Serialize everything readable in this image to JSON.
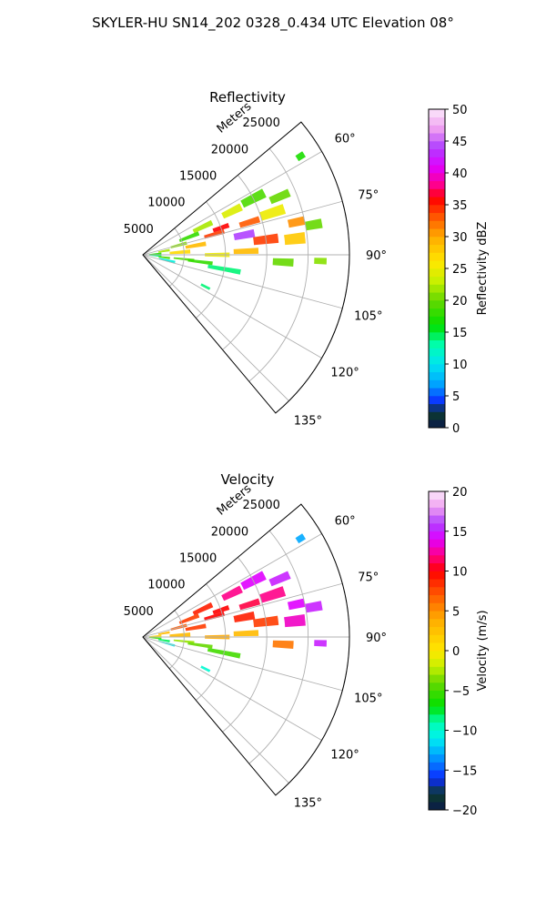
{
  "figure": {
    "title": "SKYLER-HU  SN14_202  0328_0.434 UTC Elevation 08°"
  },
  "chart_data": [
    {
      "type": "heatmap",
      "projection": "polar-sector",
      "title": "Reflectivity",
      "radial_label": "Meters",
      "radial_ticks": [
        5000,
        10000,
        15000,
        20000,
        25000
      ],
      "radial_tick_labels": [
        "5000",
        "10000",
        "15000",
        "20000",
        "25000"
      ],
      "rlim": [
        0,
        25000
      ],
      "theta_range_deg": [
        50,
        140
      ],
      "theta_ticks_deg": [
        60,
        75,
        90,
        105,
        120,
        135
      ],
      "theta_tick_labels": [
        "60°",
        "75°",
        "90°",
        "105°",
        "120°",
        "135°"
      ],
      "grid": true,
      "colorbar": {
        "label": "Reflectivity dBZ",
        "range": [
          0,
          50
        ],
        "ticks": [
          0,
          5,
          10,
          15,
          20,
          25,
          30,
          35,
          40,
          45,
          50
        ],
        "tick_labels": [
          "0",
          "5",
          "10",
          "15",
          "20",
          "25",
          "30",
          "35",
          "40",
          "45",
          "50"
        ],
        "stops": [
          {
            "v": 0,
            "c": "#0a1a4a"
          },
          {
            "v": 2.5,
            "c": "#0d3b2e"
          },
          {
            "v": 4,
            "c": "#0b2bff"
          },
          {
            "v": 7,
            "c": "#00a8ff"
          },
          {
            "v": 10,
            "c": "#00e5f0"
          },
          {
            "v": 13,
            "c": "#00ffb0"
          },
          {
            "v": 16,
            "c": "#00e000"
          },
          {
            "v": 20,
            "c": "#66d800"
          },
          {
            "v": 23,
            "c": "#c8f000"
          },
          {
            "v": 26,
            "c": "#ffe800"
          },
          {
            "v": 30,
            "c": "#ffaa00"
          },
          {
            "v": 33,
            "c": "#ff5a00"
          },
          {
            "v": 36,
            "c": "#ff0000"
          },
          {
            "v": 38,
            "c": "#ff0088"
          },
          {
            "v": 41,
            "c": "#e000ff"
          },
          {
            "v": 44,
            "c": "#b040ff"
          },
          {
            "v": 47,
            "c": "#f0a0f0"
          },
          {
            "v": 50,
            "c": "#fbe8fb"
          }
        ]
      },
      "cells": [
        {
          "r": 1500,
          "t": 86,
          "dr": 1500,
          "dt": 6,
          "v": 17
        },
        {
          "r": 1500,
          "t": 94,
          "dr": 1500,
          "dt": 6,
          "v": 14
        },
        {
          "r": 2600,
          "t": 80,
          "dr": 1400,
          "dt": 5,
          "v": 22
        },
        {
          "r": 2600,
          "t": 97,
          "dr": 1400,
          "dt": 5,
          "v": 19
        },
        {
          "r": 3000,
          "t": 103,
          "dr": 2000,
          "dt": 5,
          "v": 11
        },
        {
          "r": 4500,
          "t": 75,
          "dr": 2000,
          "dt": 4,
          "v": 21
        },
        {
          "r": 4500,
          "t": 86,
          "dr": 2500,
          "dt": 5,
          "v": 27
        },
        {
          "r": 5000,
          "t": 96,
          "dr": 2500,
          "dt": 3,
          "v": 19
        },
        {
          "r": 6000,
          "t": 69,
          "dr": 2500,
          "dt": 4,
          "v": 18
        },
        {
          "r": 6500,
          "t": 80,
          "dr": 2500,
          "dt": 4,
          "v": 29
        },
        {
          "r": 7000,
          "t": 97,
          "dr": 3000,
          "dt": 3,
          "v": 18
        },
        {
          "r": 8000,
          "t": 65,
          "dr": 2500,
          "dt": 4,
          "v": 22
        },
        {
          "r": 9000,
          "t": 74,
          "dr": 2500,
          "dt": 3,
          "v": 34
        },
        {
          "r": 9000,
          "t": 90,
          "dr": 3000,
          "dt": 3,
          "v": 25
        },
        {
          "r": 10000,
          "t": 71,
          "dr": 2000,
          "dt": 3,
          "v": 36
        },
        {
          "r": 10000,
          "t": 100,
          "dr": 4000,
          "dt": 3,
          "v": 14
        },
        {
          "r": 12000,
          "t": 64,
          "dr": 2500,
          "dt": 4,
          "v": 24
        },
        {
          "r": 12500,
          "t": 79,
          "dr": 2500,
          "dt": 4,
          "v": 44
        },
        {
          "r": 12500,
          "t": 88,
          "dr": 3000,
          "dt": 3,
          "v": 29
        },
        {
          "r": 13500,
          "t": 73,
          "dr": 2500,
          "dt": 3,
          "v": 33
        },
        {
          "r": 15000,
          "t": 63,
          "dr": 3000,
          "dt": 4,
          "v": 19
        },
        {
          "r": 15000,
          "t": 83,
          "dr": 3000,
          "dt": 4,
          "v": 34
        },
        {
          "r": 16500,
          "t": 72,
          "dr": 3000,
          "dt": 4,
          "v": 25
        },
        {
          "r": 17000,
          "t": 93,
          "dr": 2500,
          "dt": 3,
          "v": 20
        },
        {
          "r": 18000,
          "t": 67,
          "dr": 2500,
          "dt": 3,
          "v": 20
        },
        {
          "r": 18500,
          "t": 84,
          "dr": 2500,
          "dt": 4,
          "v": 28
        },
        {
          "r": 19000,
          "t": 78,
          "dr": 2000,
          "dt": 3,
          "v": 31
        },
        {
          "r": 21000,
          "t": 80,
          "dr": 2000,
          "dt": 3,
          "v": 20
        },
        {
          "r": 21500,
          "t": 92,
          "dr": 1500,
          "dt": 2,
          "v": 21
        },
        {
          "r": 22500,
          "t": 58,
          "dr": 1000,
          "dt": 2,
          "v": 17
        },
        {
          "r": 8500,
          "t": 117,
          "dr": 1200,
          "dt": 2,
          "v": 14
        }
      ]
    },
    {
      "type": "heatmap",
      "projection": "polar-sector",
      "title": "Velocity",
      "radial_label": "Meters",
      "radial_ticks": [
        5000,
        10000,
        15000,
        20000,
        25000
      ],
      "radial_tick_labels": [
        "5000",
        "10000",
        "15000",
        "20000",
        "25000"
      ],
      "rlim": [
        0,
        25000
      ],
      "theta_range_deg": [
        50,
        140
      ],
      "theta_ticks_deg": [
        60,
        75,
        90,
        105,
        120,
        135
      ],
      "theta_tick_labels": [
        "60°",
        "75°",
        "90°",
        "105°",
        "120°",
        "135°"
      ],
      "grid": true,
      "colorbar": {
        "label": "Velocity (m/s)",
        "range": [
          -20,
          20
        ],
        "ticks": [
          -20,
          -15,
          -10,
          -5,
          0,
          5,
          10,
          15,
          20
        ],
        "tick_labels": [
          "−20",
          "−15",
          "−10",
          "−5",
          "0",
          "5",
          "10",
          "15",
          "20"
        ],
        "stops": [
          {
            "v": -20,
            "c": "#0a1a4a"
          },
          {
            "v": -18,
            "c": "#0d3b2e"
          },
          {
            "v": -16,
            "c": "#0b2bff"
          },
          {
            "v": -13,
            "c": "#00a8ff"
          },
          {
            "v": -11,
            "c": "#00f0f0"
          },
          {
            "v": -9,
            "c": "#00ffb0"
          },
          {
            "v": -7,
            "c": "#00e000"
          },
          {
            "v": -4,
            "c": "#66d800"
          },
          {
            "v": -2,
            "c": "#c8f000"
          },
          {
            "v": 0,
            "c": "#ffe800"
          },
          {
            "v": 4,
            "c": "#ffaa00"
          },
          {
            "v": 7,
            "c": "#ff5a00"
          },
          {
            "v": 10,
            "c": "#ff0000"
          },
          {
            "v": 12,
            "c": "#ff0088"
          },
          {
            "v": 14,
            "c": "#e000ff"
          },
          {
            "v": 16,
            "c": "#b040ff"
          },
          {
            "v": 18,
            "c": "#f0a0f0"
          },
          {
            "v": 20,
            "c": "#fbe8fb"
          }
        ]
      },
      "cells": [
        {
          "r": 1500,
          "t": 86,
          "dr": 1500,
          "dt": 6,
          "v": 1
        },
        {
          "r": 1500,
          "t": 95,
          "dr": 1500,
          "dt": 6,
          "v": -5
        },
        {
          "r": 2600,
          "t": 80,
          "dr": 1400,
          "dt": 5,
          "v": 3
        },
        {
          "r": 2600,
          "t": 99,
          "dr": 1400,
          "dt": 5,
          "v": -8
        },
        {
          "r": 3000,
          "t": 105,
          "dr": 2000,
          "dt": 4,
          "v": -11
        },
        {
          "r": 4500,
          "t": 75,
          "dr": 2000,
          "dt": 4,
          "v": 7
        },
        {
          "r": 4500,
          "t": 87,
          "dr": 2500,
          "dt": 5,
          "v": 3
        },
        {
          "r": 5000,
          "t": 96,
          "dr": 2500,
          "dt": 3,
          "v": -3
        },
        {
          "r": 6000,
          "t": 69,
          "dr": 2500,
          "dt": 4,
          "v": 8
        },
        {
          "r": 6500,
          "t": 80,
          "dr": 2500,
          "dt": 4,
          "v": 8
        },
        {
          "r": 7000,
          "t": 98,
          "dr": 3000,
          "dt": 3,
          "v": -4
        },
        {
          "r": 8000,
          "t": 65,
          "dr": 2500,
          "dt": 4,
          "v": 9
        },
        {
          "r": 9000,
          "t": 74,
          "dr": 2500,
          "dt": 3,
          "v": 10
        },
        {
          "r": 9000,
          "t": 90,
          "dr": 3000,
          "dt": 3,
          "v": 4
        },
        {
          "r": 10000,
          "t": 71,
          "dr": 2000,
          "dt": 3,
          "v": 10
        },
        {
          "r": 10000,
          "t": 101,
          "dr": 4000,
          "dt": 3,
          "v": -5
        },
        {
          "r": 12000,
          "t": 64,
          "dr": 2500,
          "dt": 4,
          "v": 12
        },
        {
          "r": 12500,
          "t": 79,
          "dr": 2500,
          "dt": 4,
          "v": 9
        },
        {
          "r": 12500,
          "t": 88,
          "dr": 3000,
          "dt": 3,
          "v": 3
        },
        {
          "r": 13500,
          "t": 73,
          "dr": 2500,
          "dt": 3,
          "v": 11
        },
        {
          "r": 15000,
          "t": 63,
          "dr": 3000,
          "dt": 4,
          "v": 14
        },
        {
          "r": 15000,
          "t": 83,
          "dr": 3000,
          "dt": 4,
          "v": 8
        },
        {
          "r": 16500,
          "t": 72,
          "dr": 3000,
          "dt": 4,
          "v": 12
        },
        {
          "r": 17000,
          "t": 93,
          "dr": 2500,
          "dt": 3,
          "v": 6
        },
        {
          "r": 18000,
          "t": 67,
          "dr": 2500,
          "dt": 3,
          "v": 15
        },
        {
          "r": 18500,
          "t": 84,
          "dr": 2500,
          "dt": 4,
          "v": 13
        },
        {
          "r": 19000,
          "t": 78,
          "dr": 2000,
          "dt": 3,
          "v": 14
        },
        {
          "r": 21000,
          "t": 80,
          "dr": 2000,
          "dt": 3,
          "v": 15
        },
        {
          "r": 21500,
          "t": 92,
          "dr": 1500,
          "dt": 2,
          "v": 15
        },
        {
          "r": 22500,
          "t": 58,
          "dr": 1000,
          "dt": 2,
          "v": -13
        },
        {
          "r": 8500,
          "t": 117,
          "dr": 1200,
          "dt": 2,
          "v": -10
        }
      ]
    }
  ]
}
